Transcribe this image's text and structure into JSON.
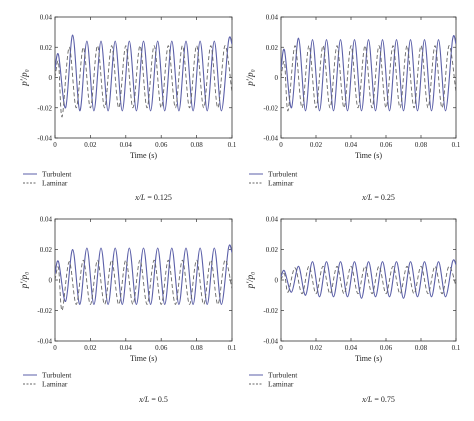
{
  "chart_data": [
    {
      "type": "line",
      "caption_var": "x/L",
      "caption_value": " = 0.125",
      "ylabel": "p′/p₀",
      "xlabel": "Time (s)",
      "xlim": [
        0,
        0.1
      ],
      "ylim": [
        -0.04,
        0.04
      ],
      "xticks": [
        "0",
        "0.02",
        "0.04",
        "0.06",
        "0.08",
        "0.1"
      ],
      "yticks": [
        "0.04",
        "0.02",
        "0",
        "-0.02",
        "-0.04"
      ],
      "series": [
        {
          "name": "Turbulent",
          "style": "solid",
          "color": "#5b5fa8",
          "x": [
            0,
            0.002,
            0.006,
            0.01,
            0.014,
            0.018,
            0.022,
            0.026,
            0.03,
            0.034,
            0.038,
            0.042,
            0.046,
            0.05,
            0.054,
            0.058,
            0.062,
            0.066,
            0.07,
            0.074,
            0.078,
            0.082,
            0.086,
            0.09,
            0.094,
            0.098,
            0.1
          ],
          "y": [
            0.005,
            0.015,
            -0.02,
            0.028,
            -0.022,
            0.024,
            -0.022,
            0.024,
            -0.022,
            0.024,
            -0.022,
            0.024,
            -0.022,
            0.024,
            -0.022,
            0.024,
            -0.022,
            0.024,
            -0.022,
            0.024,
            -0.022,
            0.024,
            -0.022,
            0.024,
            -0.022,
            0.024,
            0.022
          ]
        },
        {
          "name": "Laminar",
          "style": "dashed",
          "color": "#666666",
          "x": [
            0,
            0.002,
            0.004,
            0.008,
            0.012,
            0.016,
            0.02,
            0.024,
            0.028,
            0.032,
            0.036,
            0.04,
            0.044,
            0.048,
            0.052,
            0.056,
            0.06,
            0.064,
            0.068,
            0.072,
            0.076,
            0.08,
            0.084,
            0.088,
            0.092,
            0.096,
            0.1
          ],
          "y": [
            0.0,
            0.01,
            -0.026,
            0.02,
            -0.02,
            0.02,
            -0.02,
            0.021,
            -0.02,
            0.021,
            -0.02,
            0.021,
            -0.02,
            0.021,
            -0.02,
            0.021,
            -0.02,
            0.021,
            -0.02,
            0.021,
            -0.02,
            0.021,
            -0.02,
            0.021,
            -0.02,
            0.021,
            -0.01
          ]
        }
      ]
    },
    {
      "type": "line",
      "caption_var": "x/L",
      "caption_value": " = 0.25",
      "ylabel": "p′/p₀",
      "xlabel": "Time (s)",
      "xlim": [
        0,
        0.1
      ],
      "ylim": [
        -0.04,
        0.04
      ],
      "xticks": [
        "0",
        "0.02",
        "0.04",
        "0.06",
        "0.08",
        "0.1"
      ],
      "yticks": [
        "0.04",
        "0.02",
        "0",
        "-0.02",
        "-0.04"
      ],
      "series": [
        {
          "name": "Turbulent",
          "style": "solid",
          "color": "#5b5fa8",
          "x": [
            0,
            0.002,
            0.006,
            0.01,
            0.014,
            0.018,
            0.022,
            0.026,
            0.03,
            0.034,
            0.038,
            0.042,
            0.046,
            0.05,
            0.054,
            0.058,
            0.062,
            0.066,
            0.07,
            0.074,
            0.078,
            0.082,
            0.086,
            0.09,
            0.094,
            0.098,
            0.1
          ],
          "y": [
            0.005,
            0.018,
            -0.02,
            0.026,
            -0.022,
            0.025,
            -0.022,
            0.025,
            -0.022,
            0.025,
            -0.022,
            0.025,
            -0.022,
            0.025,
            -0.022,
            0.025,
            -0.022,
            0.025,
            -0.022,
            0.025,
            -0.022,
            0.025,
            -0.022,
            0.025,
            -0.022,
            0.025,
            0.022
          ]
        },
        {
          "name": "Laminar",
          "style": "dashed",
          "color": "#666666",
          "x": [
            0,
            0.002,
            0.004,
            0.008,
            0.012,
            0.016,
            0.02,
            0.024,
            0.028,
            0.032,
            0.036,
            0.04,
            0.044,
            0.048,
            0.052,
            0.056,
            0.06,
            0.064,
            0.068,
            0.072,
            0.076,
            0.08,
            0.084,
            0.088,
            0.092,
            0.096,
            0.1
          ],
          "y": [
            0.0,
            0.01,
            -0.022,
            0.021,
            -0.02,
            0.021,
            -0.02,
            0.021,
            -0.02,
            0.021,
            -0.02,
            0.021,
            -0.02,
            0.021,
            -0.02,
            0.021,
            -0.02,
            0.021,
            -0.02,
            0.021,
            -0.02,
            0.021,
            -0.02,
            0.021,
            -0.02,
            0.021,
            -0.01
          ]
        }
      ]
    },
    {
      "type": "line",
      "caption_var": "x/L",
      "caption_value": " = 0.5",
      "ylabel": "p′/p₀",
      "xlabel": "Time (s)",
      "xlim": [
        0,
        0.1
      ],
      "ylim": [
        -0.04,
        0.04
      ],
      "xticks": [
        "0",
        "0.02",
        "0.04",
        "0.06",
        "0.08",
        "0.1"
      ],
      "yticks": [
        "0.04",
        "0.02",
        "0",
        "-0.02",
        "-0.04"
      ],
      "series": [
        {
          "name": "Turbulent",
          "style": "solid",
          "color": "#5b5fa8",
          "x": [
            0,
            0.002,
            0.006,
            0.01,
            0.014,
            0.018,
            0.022,
            0.026,
            0.03,
            0.034,
            0.038,
            0.042,
            0.046,
            0.05,
            0.054,
            0.058,
            0.062,
            0.066,
            0.07,
            0.074,
            0.078,
            0.082,
            0.086,
            0.09,
            0.094,
            0.098,
            0.1
          ],
          "y": [
            0.004,
            0.012,
            -0.014,
            0.02,
            -0.016,
            0.021,
            -0.016,
            0.021,
            -0.016,
            0.021,
            -0.016,
            0.021,
            -0.016,
            0.021,
            -0.016,
            0.021,
            -0.016,
            0.021,
            -0.016,
            0.021,
            -0.016,
            0.021,
            -0.016,
            0.021,
            -0.016,
            0.021,
            0.018
          ]
        },
        {
          "name": "Laminar",
          "style": "dashed",
          "color": "#666666",
          "x": [
            0,
            0.002,
            0.004,
            0.008,
            0.012,
            0.016,
            0.02,
            0.024,
            0.028,
            0.032,
            0.036,
            0.04,
            0.044,
            0.048,
            0.052,
            0.056,
            0.06,
            0.064,
            0.068,
            0.072,
            0.076,
            0.08,
            0.084,
            0.088,
            0.092,
            0.096,
            0.1
          ],
          "y": [
            0.0,
            0.008,
            -0.02,
            0.012,
            -0.016,
            0.013,
            -0.016,
            0.013,
            -0.016,
            0.013,
            -0.016,
            0.013,
            -0.016,
            0.013,
            -0.016,
            0.013,
            -0.016,
            0.013,
            -0.016,
            0.013,
            -0.016,
            0.013,
            -0.016,
            0.013,
            -0.016,
            0.013,
            -0.006
          ]
        }
      ]
    },
    {
      "type": "line",
      "caption_var": "x/L",
      "caption_value": " = 0.75",
      "ylabel": "p′/p₀",
      "xlabel": "Time (s)",
      "xlim": [
        0,
        0.1
      ],
      "ylim": [
        -0.04,
        0.04
      ],
      "xticks": [
        "0",
        "0.02",
        "0.04",
        "0.06",
        "0.08",
        "0.1"
      ],
      "yticks": [
        "0.04",
        "0.02",
        "0",
        "-0.02",
        "-0.04"
      ],
      "series": [
        {
          "name": "Turbulent",
          "style": "solid",
          "color": "#5b5fa8",
          "x": [
            0,
            0.002,
            0.006,
            0.01,
            0.014,
            0.018,
            0.022,
            0.026,
            0.03,
            0.034,
            0.038,
            0.042,
            0.046,
            0.05,
            0.054,
            0.058,
            0.062,
            0.066,
            0.07,
            0.074,
            0.078,
            0.082,
            0.086,
            0.09,
            0.094,
            0.098,
            0.1
          ],
          "y": [
            0.002,
            0.006,
            -0.008,
            0.009,
            -0.01,
            0.012,
            -0.011,
            0.012,
            -0.011,
            0.012,
            -0.011,
            0.012,
            -0.012,
            0.012,
            -0.011,
            0.012,
            -0.011,
            0.012,
            -0.012,
            0.012,
            -0.011,
            0.012,
            -0.011,
            0.012,
            -0.011,
            0.012,
            0.01
          ]
        },
        {
          "name": "Laminar",
          "style": "dashed",
          "color": "#666666",
          "x": [
            0,
            0.002,
            0.004,
            0.008,
            0.012,
            0.016,
            0.02,
            0.024,
            0.028,
            0.032,
            0.036,
            0.04,
            0.044,
            0.048,
            0.052,
            0.056,
            0.06,
            0.064,
            0.068,
            0.072,
            0.076,
            0.08,
            0.084,
            0.088,
            0.092,
            0.096,
            0.1
          ],
          "y": [
            0.0,
            0.004,
            -0.008,
            0.008,
            -0.009,
            0.009,
            -0.009,
            0.009,
            -0.009,
            0.009,
            -0.009,
            0.009,
            -0.009,
            0.009,
            -0.009,
            0.009,
            -0.009,
            0.009,
            -0.009,
            0.009,
            -0.009,
            0.009,
            -0.009,
            0.009,
            -0.009,
            0.009,
            -0.004
          ]
        }
      ]
    }
  ]
}
